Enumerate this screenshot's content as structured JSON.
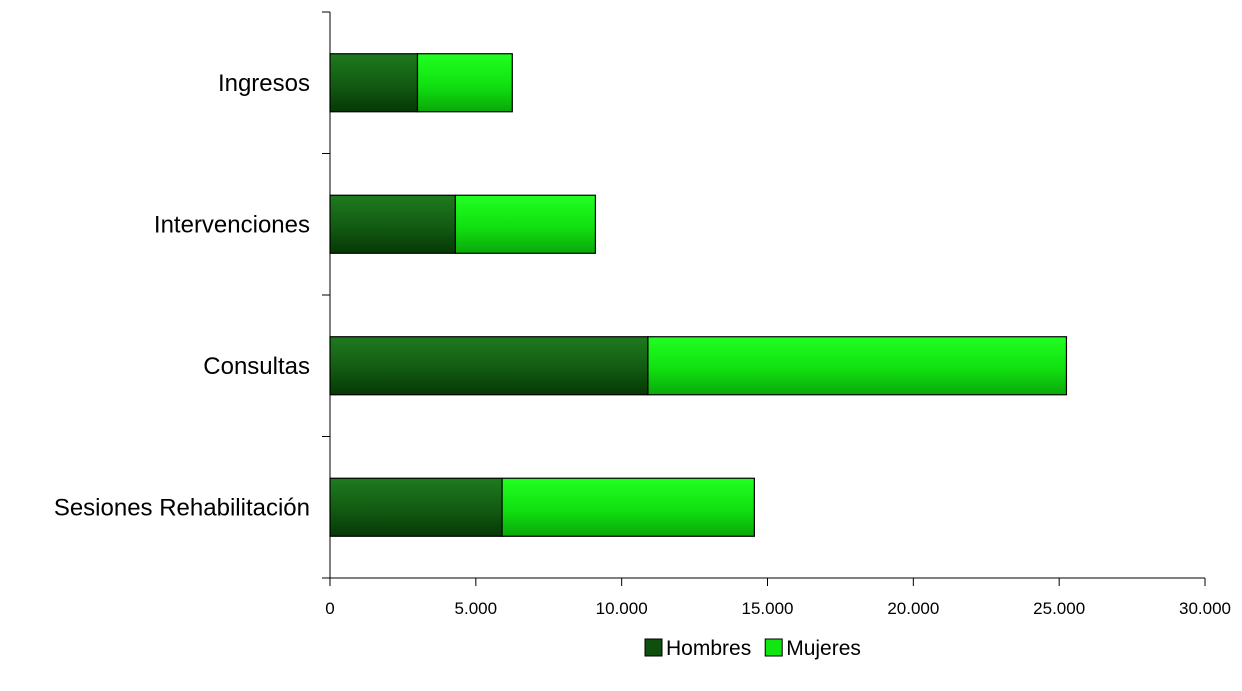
{
  "chart_data": {
    "type": "bar",
    "orientation": "horizontal",
    "stacked": true,
    "categories": [
      "Ingresos",
      "Intervenciones",
      "Consultas",
      "Sesiones Rehabilitación"
    ],
    "series": [
      {
        "name": "Hombres",
        "values": [
          3000,
          4300,
          10900,
          5900
        ],
        "color": "#0e4f0e"
      },
      {
        "name": "Mujeres",
        "values": [
          3250,
          4800,
          14350,
          8650
        ],
        "color": "#11e611"
      }
    ],
    "x_ticks": [
      "0",
      "5.000",
      "10.000",
      "15.000",
      "20.000",
      "25.000",
      "30.000"
    ],
    "xlim": [
      0,
      30000
    ],
    "grid": false,
    "legend_position": "bottom-center",
    "title": "",
    "xlabel": "",
    "ylabel": ""
  }
}
